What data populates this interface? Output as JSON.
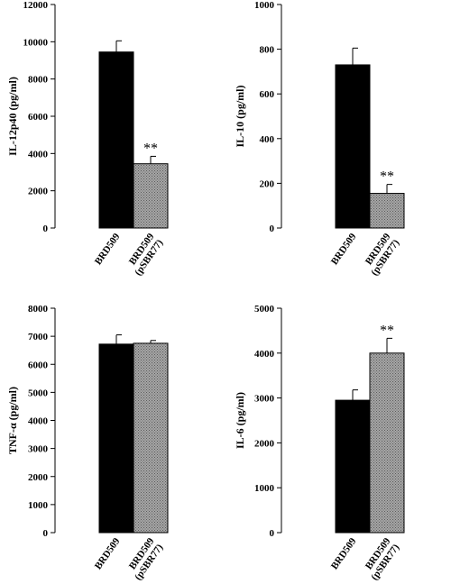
{
  "chart_data": [
    {
      "type": "bar",
      "ylabel": "IL-12p40 (pg/ml)",
      "ylim": [
        0,
        12000
      ],
      "yticks": [
        0,
        2000,
        4000,
        6000,
        8000,
        10000,
        12000
      ],
      "categories": [
        "BRD509",
        "BRD509 (pSBR77)"
      ],
      "values": [
        9450,
        3450
      ],
      "errors": [
        600,
        400
      ],
      "annotations": [
        "",
        "**"
      ],
      "colors": [
        "#000000",
        "#9a9a9a"
      ]
    },
    {
      "type": "bar",
      "ylabel": "IL-10 (pg/ml)",
      "ylim": [
        0,
        1000
      ],
      "yticks": [
        0,
        200,
        400,
        600,
        800,
        1000
      ],
      "categories": [
        "BRD509",
        "BRD509 (pSBR77)"
      ],
      "values": [
        730,
        155
      ],
      "errors": [
        75,
        40
      ],
      "annotations": [
        "",
        "**"
      ],
      "colors": [
        "#000000",
        "#9a9a9a"
      ]
    },
    {
      "type": "bar",
      "ylabel": "TNF-α (pg/ml)",
      "ylim": [
        0,
        8000
      ],
      "yticks": [
        0,
        1000,
        2000,
        3000,
        4000,
        5000,
        6000,
        7000,
        8000
      ],
      "categories": [
        "BRD509",
        "BRD509 (pSBR77)"
      ],
      "values": [
        6720,
        6750
      ],
      "errors": [
        330,
        100
      ],
      "annotations": [
        "",
        ""
      ],
      "colors": [
        "#000000",
        "#9a9a9a"
      ]
    },
    {
      "type": "bar",
      "ylabel": "IL-6 (pg/ml)",
      "ylim": [
        0,
        5000
      ],
      "yticks": [
        0,
        1000,
        2000,
        3000,
        4000,
        5000
      ],
      "categories": [
        "BRD509",
        "BRD509 (pSBR77)"
      ],
      "values": [
        2950,
        4000
      ],
      "errors": [
        230,
        330
      ],
      "annotations": [
        "",
        "**"
      ],
      "colors": [
        "#000000",
        "#9a9a9a"
      ]
    }
  ]
}
